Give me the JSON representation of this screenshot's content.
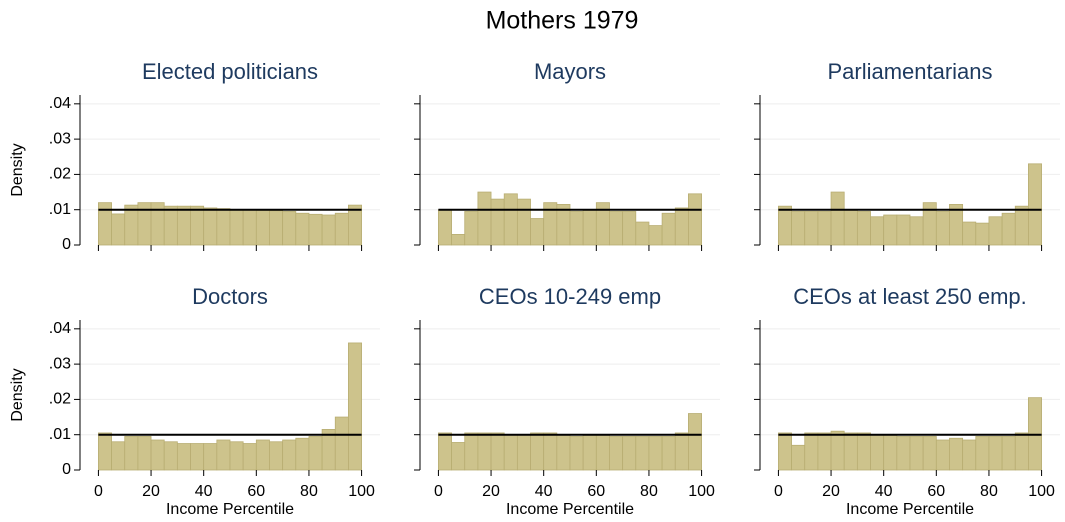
{
  "title": "Mothers 1979",
  "chart_data": [
    {
      "type": "histogram",
      "title": "Elected politicians",
      "ylabel": "Density",
      "bins": [
        0,
        5,
        10,
        15,
        20,
        25,
        30,
        35,
        40,
        45,
        50,
        55,
        60,
        65,
        70,
        75,
        80,
        85,
        90,
        95,
        100
      ],
      "values": [
        0.012,
        0.0088,
        0.0113,
        0.012,
        0.012,
        0.011,
        0.011,
        0.011,
        0.0105,
        0.0103,
        0.01,
        0.01,
        0.0098,
        0.0097,
        0.0095,
        0.009,
        0.0087,
        0.0085,
        0.009,
        0.0113
      ],
      "reference_line": 0.01,
      "xlim": [
        -7,
        107
      ],
      "ylim": [
        0,
        0.0425
      ],
      "xticks": [
        0,
        20,
        40,
        60,
        80,
        100
      ],
      "show_xtick_labels": false,
      "yticks": [
        0,
        {
          "value": 0.01,
          "label": ".01"
        },
        {
          "value": 0.02,
          "label": ".02"
        },
        {
          "value": 0.03,
          "label": ".03"
        },
        {
          "value": 0.04,
          "label": ".04"
        }
      ],
      "color": "#cdc38c",
      "grid": true
    },
    {
      "type": "histogram",
      "title": "Mayors",
      "bins": [
        0,
        5,
        10,
        15,
        20,
        25,
        30,
        35,
        40,
        45,
        50,
        55,
        60,
        65,
        70,
        75,
        80,
        85,
        90,
        95,
        100
      ],
      "values": [
        0.01,
        0.003,
        0.0095,
        0.015,
        0.013,
        0.0145,
        0.013,
        0.0075,
        0.012,
        0.0115,
        0.0095,
        0.01,
        0.012,
        0.0095,
        0.0095,
        0.0065,
        0.0055,
        0.009,
        0.0105,
        0.0145
      ],
      "reference_line": 0.01,
      "xlim": [
        -7,
        107
      ],
      "ylim": [
        0,
        0.0425
      ],
      "xticks": [
        0,
        20,
        40,
        60,
        80,
        100
      ],
      "show_xtick_labels": false,
      "yticks": [
        0,
        0.01,
        0.02,
        0.03,
        0.04
      ],
      "show_ytick_labels": false,
      "color": "#cdc38c",
      "grid": true
    },
    {
      "type": "histogram",
      "title": "Parliamentarians",
      "bins": [
        0,
        5,
        10,
        15,
        20,
        25,
        30,
        35,
        40,
        45,
        50,
        55,
        60,
        65,
        70,
        75,
        80,
        85,
        90,
        95,
        100
      ],
      "values": [
        0.011,
        0.0095,
        0.0095,
        0.0095,
        0.015,
        0.01,
        0.0095,
        0.008,
        0.0085,
        0.0085,
        0.008,
        0.012,
        0.0095,
        0.0115,
        0.0065,
        0.0062,
        0.008,
        0.009,
        0.011,
        0.023
      ],
      "reference_line": 0.01,
      "xlim": [
        -7,
        107
      ],
      "ylim": [
        0,
        0.0425
      ],
      "xticks": [
        0,
        20,
        40,
        60,
        80,
        100
      ],
      "show_xtick_labels": false,
      "yticks": [
        0,
        0.01,
        0.02,
        0.03,
        0.04
      ],
      "show_ytick_labels": false,
      "color": "#cdc38c",
      "grid": true
    },
    {
      "type": "histogram",
      "title": "Doctors",
      "ylabel": "Density",
      "xlabel": "Income Percentile",
      "bins": [
        0,
        5,
        10,
        15,
        20,
        25,
        30,
        35,
        40,
        45,
        50,
        55,
        60,
        65,
        70,
        75,
        80,
        85,
        90,
        95,
        100
      ],
      "values": [
        0.0105,
        0.008,
        0.0095,
        0.0095,
        0.0085,
        0.008,
        0.0075,
        0.0075,
        0.0075,
        0.0085,
        0.008,
        0.0075,
        0.0085,
        0.008,
        0.0085,
        0.009,
        0.0095,
        0.0115,
        0.015,
        0.036
      ],
      "reference_line": 0.01,
      "xlim": [
        -7,
        107
      ],
      "ylim": [
        0,
        0.0425
      ],
      "xticks": [
        0,
        20,
        40,
        60,
        80,
        100
      ],
      "yticks": [
        0,
        {
          "value": 0.01,
          "label": ".01"
        },
        {
          "value": 0.02,
          "label": ".02"
        },
        {
          "value": 0.03,
          "label": ".03"
        },
        {
          "value": 0.04,
          "label": ".04"
        }
      ],
      "color": "#cdc38c",
      "grid": true
    },
    {
      "type": "histogram",
      "title": "CEOs 10-249 emp",
      "xlabel": "Income Percentile",
      "bins": [
        0,
        5,
        10,
        15,
        20,
        25,
        30,
        35,
        40,
        45,
        50,
        55,
        60,
        65,
        70,
        75,
        80,
        85,
        90,
        95,
        100
      ],
      "values": [
        0.0105,
        0.0078,
        0.0105,
        0.0105,
        0.0105,
        0.01,
        0.01,
        0.0105,
        0.0105,
        0.01,
        0.0095,
        0.01,
        0.01,
        0.0095,
        0.0095,
        0.0095,
        0.0095,
        0.0095,
        0.0105,
        0.016
      ],
      "reference_line": 0.01,
      "xlim": [
        -7,
        107
      ],
      "ylim": [
        0,
        0.0425
      ],
      "xticks": [
        0,
        20,
        40,
        60,
        80,
        100
      ],
      "yticks": [
        0,
        0.01,
        0.02,
        0.03,
        0.04
      ],
      "show_ytick_labels": false,
      "color": "#cdc38c",
      "grid": true
    },
    {
      "type": "histogram",
      "title": "CEOs at least 250 emp.",
      "xlabel": "Income Percentile",
      "bins": [
        0,
        5,
        10,
        15,
        20,
        25,
        30,
        35,
        40,
        45,
        50,
        55,
        60,
        65,
        70,
        75,
        80,
        85,
        90,
        95,
        100
      ],
      "values": [
        0.0105,
        0.007,
        0.0105,
        0.0105,
        0.011,
        0.0105,
        0.0105,
        0.01,
        0.01,
        0.0095,
        0.0095,
        0.0095,
        0.0085,
        0.009,
        0.0085,
        0.0095,
        0.0095,
        0.0095,
        0.0105,
        0.0205
      ],
      "reference_line": 0.01,
      "xlim": [
        -7,
        107
      ],
      "ylim": [
        0,
        0.0425
      ],
      "xticks": [
        0,
        20,
        40,
        60,
        80,
        100
      ],
      "yticks": [
        0,
        0.01,
        0.02,
        0.03,
        0.04
      ],
      "show_ytick_labels": false,
      "color": "#cdc38c",
      "grid": true
    }
  ]
}
